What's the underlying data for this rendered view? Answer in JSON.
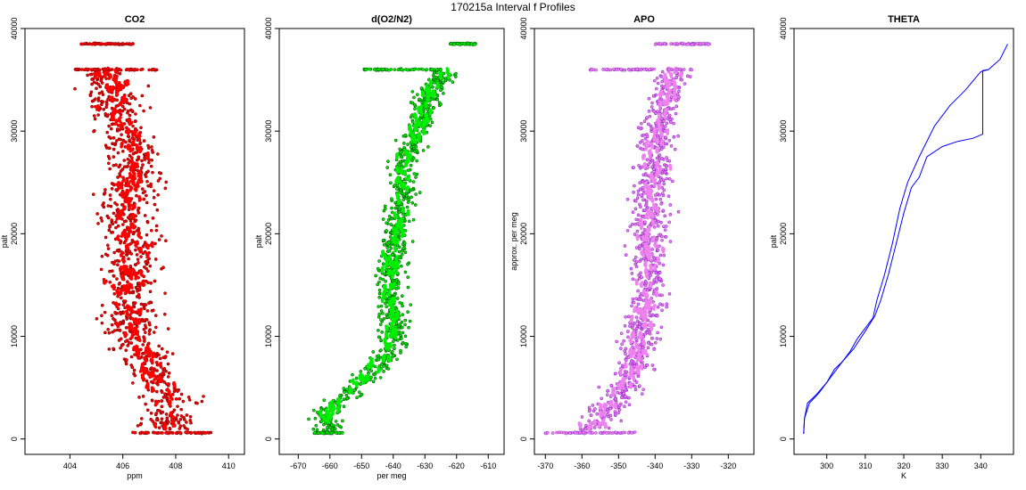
{
  "figure": {
    "title": "170215a   Interval f Profiles"
  },
  "chart_data": [
    {
      "type": "scatter",
      "title": "CO2",
      "xlabel": "ppm",
      "ylabel": "palt",
      "xlim": [
        402.3,
        410.6
      ],
      "ylim": [
        -1500,
        40000
      ],
      "xticks": [
        404,
        406,
        408,
        410
      ],
      "yticks": [
        0,
        10000,
        20000,
        30000,
        40000
      ],
      "color": "#ff0000",
      "edge_color": "#8b0000",
      "profile": [
        [
          0,
          407.6
        ],
        [
          2000,
          407.8
        ],
        [
          4000,
          407.7
        ],
        [
          6000,
          407.2
        ],
        [
          8000,
          406.8
        ],
        [
          10000,
          406.5
        ],
        [
          12000,
          406.3
        ],
        [
          14000,
          406.2
        ],
        [
          16000,
          406.3
        ],
        [
          18000,
          406.4
        ],
        [
          20000,
          406.2
        ],
        [
          22000,
          406.1
        ],
        [
          24000,
          406.3
        ],
        [
          26000,
          406.5
        ],
        [
          28000,
          406.4
        ],
        [
          30000,
          406.0
        ],
        [
          32000,
          405.8
        ],
        [
          34000,
          405.6
        ],
        [
          35500,
          405.3
        ]
      ],
      "spread": 1.0,
      "bands": [
        {
          "y": 36000,
          "x0": 404.2,
          "x1": 407.3
        },
        {
          "y": 38500,
          "x0": 404.4,
          "x1": 406.4
        },
        {
          "y": 600,
          "x0": 406.3,
          "x1": 409.4
        }
      ]
    },
    {
      "type": "scatter",
      "title": "d(O2/N2)",
      "xlabel": "per meg",
      "ylabel": "palt",
      "xlim": [
        -676,
        -605
      ],
      "ylim": [
        -1500,
        40000
      ],
      "xticks": [
        -670,
        -660,
        -650,
        -640,
        -630,
        -620,
        -610
      ],
      "yticks": [
        0,
        10000,
        20000,
        30000,
        40000
      ],
      "color": "#00ee00",
      "edge_color": "#006400",
      "profile": [
        [
          700,
          -660
        ],
        [
          2000,
          -662
        ],
        [
          3500,
          -658
        ],
        [
          5000,
          -652
        ],
        [
          6500,
          -647
        ],
        [
          8000,
          -643
        ],
        [
          10000,
          -640
        ],
        [
          12000,
          -640
        ],
        [
          14000,
          -641
        ],
        [
          16000,
          -641
        ],
        [
          18000,
          -640
        ],
        [
          20000,
          -639
        ],
        [
          22000,
          -638
        ],
        [
          24000,
          -637
        ],
        [
          26000,
          -637
        ],
        [
          28000,
          -635
        ],
        [
          30000,
          -632
        ],
        [
          32000,
          -630
        ],
        [
          34000,
          -628
        ],
        [
          35500,
          -624
        ]
      ],
      "spread": 4.5,
      "bands": [
        {
          "y": 36000,
          "x0": -650,
          "x1": -625
        },
        {
          "y": 38500,
          "x0": -622,
          "x1": -614
        },
        {
          "y": 600,
          "x0": -665,
          "x1": -656
        }
      ]
    },
    {
      "type": "scatter",
      "title": "APO",
      "xlabel": "",
      "ylabel": "approx. per meg",
      "xlim": [
        -373,
        -313
      ],
      "ylim": [
        -1500,
        40000
      ],
      "xticks": [
        -370,
        -360,
        -350,
        -340,
        -330,
        -320
      ],
      "yticks": [
        0,
        10000,
        20000,
        30000,
        40000
      ],
      "color": "#ee82ee",
      "edge_color": "#9932cc",
      "profile": [
        [
          700,
          -358
        ],
        [
          2000,
          -355
        ],
        [
          4000,
          -350
        ],
        [
          6000,
          -347
        ],
        [
          8000,
          -345
        ],
        [
          10000,
          -344
        ],
        [
          12000,
          -343
        ],
        [
          14000,
          -342
        ],
        [
          16000,
          -342
        ],
        [
          18000,
          -342
        ],
        [
          20000,
          -342
        ],
        [
          22000,
          -341
        ],
        [
          24000,
          -341
        ],
        [
          26000,
          -340
        ],
        [
          28000,
          -340
        ],
        [
          30000,
          -339
        ],
        [
          32000,
          -338
        ],
        [
          34000,
          -336
        ],
        [
          35500,
          -335
        ]
      ],
      "spread": 5,
      "bands": [
        {
          "y": 36000,
          "x0": -358,
          "x1": -330
        },
        {
          "y": 38500,
          "x0": -340,
          "x1": -325
        },
        {
          "y": 600,
          "x0": -370,
          "x1": -345
        }
      ]
    },
    {
      "type": "line",
      "title": "THETA",
      "xlabel": "K",
      "ylabel": "palt",
      "xlim": [
        291.5,
        348.5
      ],
      "ylim": [
        -1500,
        40000
      ],
      "xticks": [
        300,
        310,
        320,
        330,
        340
      ],
      "yticks": [
        0,
        10000,
        20000,
        30000,
        40000
      ],
      "color": "#0000ff",
      "series": [
        {
          "points": [
            [
              294.0,
              500
            ],
            [
              294.2,
              2000
            ],
            [
              295.0,
              3500
            ],
            [
              297.0,
              4200
            ],
            [
              300.0,
              5500
            ],
            [
              302.0,
              6800
            ],
            [
              304.0,
              7500
            ],
            [
              306.0,
              8500
            ],
            [
              308.0,
              9800
            ],
            [
              310.0,
              10800
            ],
            [
              312.0,
              11800
            ],
            [
              313.0,
              13500
            ],
            [
              315.0,
              16000
            ],
            [
              317.0,
              19000
            ],
            [
              319.0,
              22500
            ],
            [
              321.0,
              25000
            ],
            [
              324.0,
              27500
            ],
            [
              328.0,
              30500
            ],
            [
              332.0,
              32500
            ],
            [
              336.0,
              34000
            ],
            [
              340.0,
              35800
            ],
            [
              342.0,
              36000
            ]
          ]
        },
        {
          "points": [
            [
              294.0,
              500
            ],
            [
              294.2,
              2000
            ],
            [
              295.5,
              3500
            ],
            [
              298.0,
              4500
            ],
            [
              301.0,
              6000
            ],
            [
              304.0,
              7500
            ],
            [
              307.0,
              8800
            ],
            [
              310.0,
              10500
            ],
            [
              312.5,
              12000
            ],
            [
              314.0,
              13500
            ],
            [
              316.0,
              16000
            ],
            [
              318.0,
              19000
            ],
            [
              320.0,
              22000
            ],
            [
              322.0,
              24500
            ],
            [
              324.0,
              25500
            ],
            [
              326.0,
              27500
            ],
            [
              330.0,
              28500
            ],
            [
              334.0,
              29000
            ],
            [
              338.0,
              29300
            ],
            [
              340.5,
              29700
            ],
            [
              340.5,
              34500
            ],
            [
              340.5,
              35900
            ],
            [
              342.0,
              36000
            ],
            [
              345.0,
              37000
            ],
            [
              347.0,
              38500
            ]
          ]
        }
      ]
    }
  ]
}
